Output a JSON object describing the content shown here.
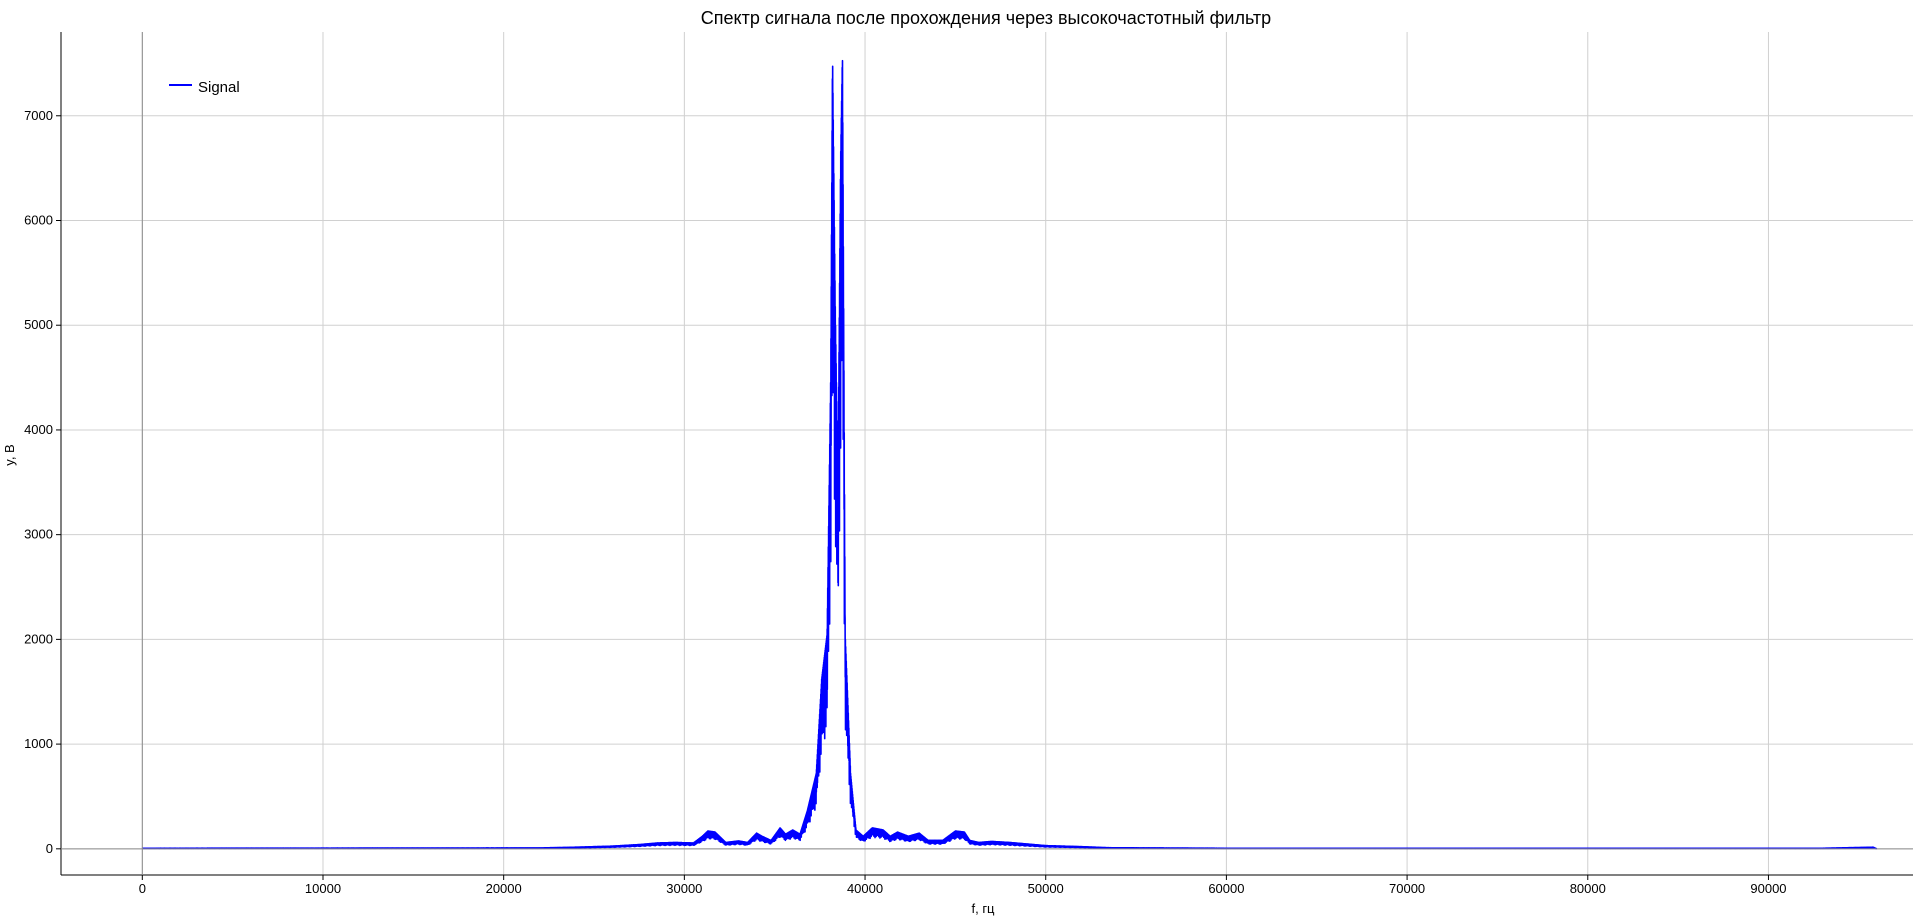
{
  "chart_data": {
    "type": "line",
    "title": "Спектр сигнала после прохождения через высокочастотный фильтр",
    "xlabel": "f, гц",
    "ylabel": "y, В",
    "xlim": [
      -4500,
      98000
    ],
    "ylim": [
      -250,
      7800
    ],
    "xticks": [
      0,
      10000,
      20000,
      30000,
      40000,
      50000,
      60000,
      70000,
      80000,
      90000
    ],
    "yticks": [
      0,
      1000,
      2000,
      3000,
      4000,
      5000,
      6000,
      7000
    ],
    "xtick_labels": [
      "0",
      "10000",
      "20000",
      "30000",
      "40000",
      "50000",
      "60000",
      "70000",
      "80000",
      "90000"
    ],
    "ytick_labels": [
      "0",
      "1000",
      "2000",
      "3000",
      "4000",
      "5000",
      "6000",
      "7000"
    ],
    "grid": true,
    "legend": {
      "position": "top-left",
      "entries": [
        "Signal"
      ]
    },
    "colors": {
      "series": "#0000ff",
      "grid": "#d0d0d0",
      "axis": "#000000"
    },
    "series": [
      {
        "name": "Signal",
        "envelope": {
          "x": [
            0,
            22000,
            24000,
            26000,
            27500,
            28500,
            29500,
            30500,
            31000,
            31300,
            31700,
            32300,
            33000,
            33500,
            34000,
            34300,
            34800,
            35300,
            35600,
            36000,
            36400,
            36800,
            37300,
            37600,
            37900,
            38100,
            38200,
            38350,
            38500,
            38650,
            38750,
            38900,
            39000,
            39200,
            39500,
            39900,
            40400,
            41000,
            41400,
            41800,
            42400,
            43000,
            43500,
            44300,
            45000,
            45500,
            45800,
            46300,
            47000,
            48000,
            49000,
            50000,
            52000,
            53500,
            60000,
            70000,
            80000,
            91500,
            93000,
            95800,
            96000
          ],
          "y": [
            5,
            8,
            15,
            25,
            40,
            55,
            60,
            55,
            120,
            170,
            160,
            60,
            75,
            60,
            150,
            120,
            80,
            200,
            140,
            180,
            140,
            360,
            720,
            1620,
            2050,
            4500,
            7600,
            5200,
            3500,
            6600,
            7600,
            2050,
            1620,
            720,
            180,
            120,
            200,
            180,
            120,
            160,
            120,
            150,
            80,
            80,
            170,
            160,
            80,
            60,
            70,
            60,
            45,
            30,
            20,
            10,
            5,
            5,
            5,
            5,
            5,
            15,
            0
          ]
        }
      }
    ]
  }
}
